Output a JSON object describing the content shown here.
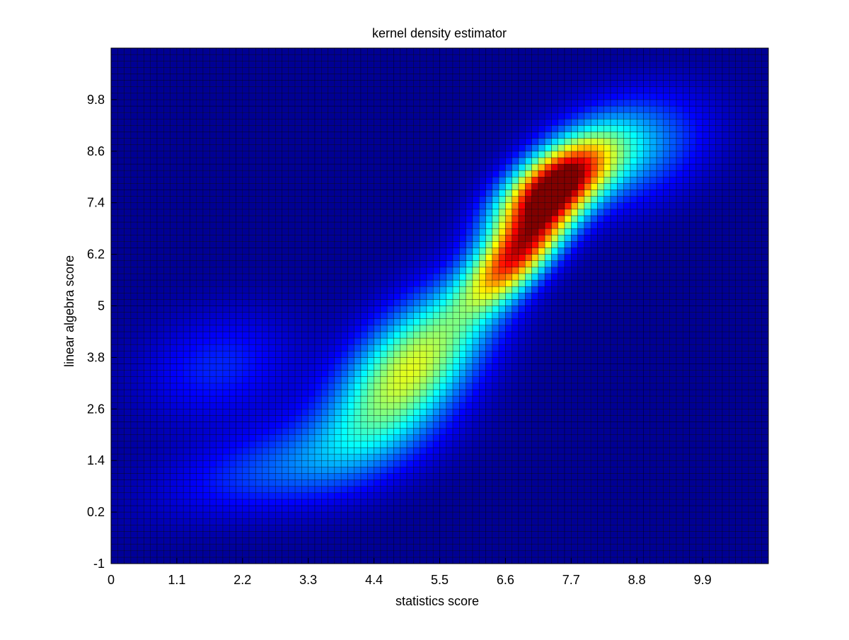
{
  "chart_data": {
    "type": "heatmap",
    "title": "kernel density estimator",
    "xlabel": "statistics score",
    "ylabel": "linear algebra score",
    "xlim": [
      0,
      11
    ],
    "ylim": [
      -1,
      11
    ],
    "x_ticks": [
      0,
      1.1,
      2.2,
      3.3,
      4.4,
      5.5,
      6.6,
      7.7,
      8.8,
      9.9
    ],
    "x_tick_labels": [
      "0",
      "1.1",
      "2.2",
      "3.3",
      "4.4",
      "5.5",
      "6.6",
      "7.7",
      "8.8",
      "9.9"
    ],
    "y_ticks": [
      -1,
      0.2,
      1.4,
      2.6,
      3.8,
      5,
      6.2,
      7.4,
      8.6,
      9.8
    ],
    "y_tick_labels": [
      "-1",
      "0.2",
      "1.4",
      "2.6",
      "3.8",
      "5",
      "6.2",
      "7.4",
      "8.6",
      "9.8"
    ],
    "grid": "cell edges",
    "colormap": "jet",
    "density_range": [
      0,
      1
    ],
    "density_peaks": [
      {
        "x": 7.4,
        "y": 7.8,
        "level": 1.0
      },
      {
        "x": 6.8,
        "y": 6.2,
        "level": 0.85
      },
      {
        "x": 5.0,
        "y": 3.5,
        "level": 0.62
      },
      {
        "x": 3.0,
        "y": 1.3,
        "level": 0.2
      },
      {
        "x": 1.8,
        "y": 3.6,
        "level": 0.15
      },
      {
        "x": 8.6,
        "y": 8.6,
        "level": 0.3
      }
    ]
  }
}
